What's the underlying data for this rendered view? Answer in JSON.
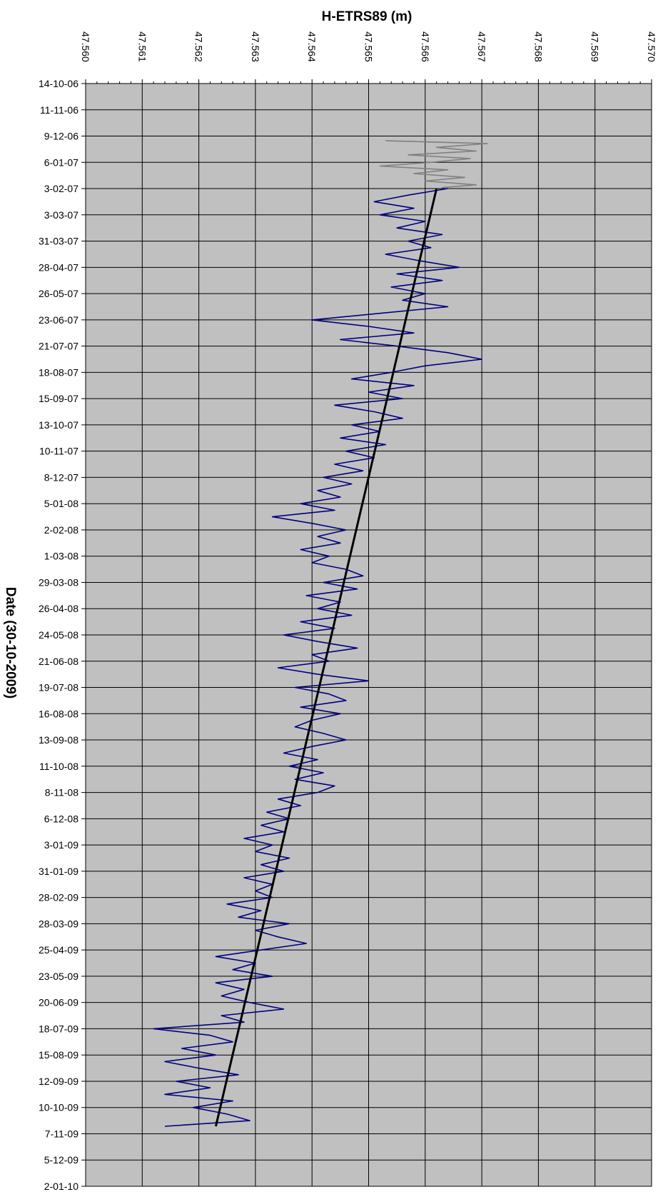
{
  "chart_data": {
    "type": "line",
    "title": "",
    "xlabel": "H-ETRS89 (m)",
    "ylabel": "Date (30-10-2009)",
    "x_axis_position": "top",
    "xlim": [
      47.56,
      47.57
    ],
    "x_ticks": [
      "47.560",
      "47.561",
      "47.562",
      "47.563",
      "47.564",
      "47.565",
      "47.566",
      "47.567",
      "47.568",
      "47.569",
      "47.570"
    ],
    "ylim": [
      "2006-10-14",
      "2010-01-02"
    ],
    "y_ticks": [
      "14-10-06",
      "11-11-06",
      "9-12-06",
      "6-01-07",
      "3-02-07",
      "3-03-07",
      "31-03-07",
      "28-04-07",
      "26-05-07",
      "23-06-07",
      "21-07-07",
      "18-08-07",
      "15-09-07",
      "13-10-07",
      "10-11-07",
      "8-12-07",
      "5-01-08",
      "2-02-08",
      "1-03-08",
      "29-03-08",
      "26-04-08",
      "24-05-08",
      "21-06-08",
      "19-07-08",
      "16-08-08",
      "13-09-08",
      "11-10-08",
      "8-11-08",
      "6-12-08",
      "3-01-09",
      "31-01-09",
      "28-02-09",
      "28-03-09",
      "25-04-09",
      "23-05-09",
      "20-06-09",
      "18-07-09",
      "15-08-09",
      "12-09-09",
      "10-10-09",
      "7-11-09",
      "5-12-09",
      "2-01-10"
    ],
    "grid": true,
    "background": "#c0c0c0",
    "series": [
      {
        "color": "#808080",
        "points": [
          [
            "2006-12-14",
            47.5653
          ],
          [
            "2006-12-17",
            47.5671
          ],
          [
            "2006-12-21",
            47.5662
          ],
          [
            "2006-12-25",
            47.5669
          ],
          [
            "2006-12-29",
            47.5657
          ],
          [
            "2007-01-02",
            47.5668
          ],
          [
            "2007-01-06",
            47.5661
          ],
          [
            "2007-01-10",
            47.5652
          ],
          [
            "2007-01-14",
            47.5664
          ],
          [
            "2007-01-18",
            47.5658
          ],
          [
            "2007-01-22",
            47.5667
          ],
          [
            "2007-01-26",
            47.566
          ],
          [
            "2007-01-30",
            47.5669
          ],
          [
            "2007-02-02",
            47.5663
          ]
        ]
      },
      {
        "color": "#000080",
        "points": [
          [
            "2007-02-03",
            47.5664
          ],
          [
            "2007-02-10",
            47.5657
          ],
          [
            "2007-02-17",
            47.5651
          ],
          [
            "2007-02-24",
            47.5658
          ],
          [
            "2007-03-03",
            47.5652
          ],
          [
            "2007-03-10",
            47.566
          ],
          [
            "2007-03-17",
            47.5655
          ],
          [
            "2007-03-24",
            47.5663
          ],
          [
            "2007-03-31",
            47.5657
          ],
          [
            "2007-04-07",
            47.5661
          ],
          [
            "2007-04-14",
            47.5653
          ],
          [
            "2007-04-21",
            47.5659
          ],
          [
            "2007-04-28",
            47.5666
          ],
          [
            "2007-05-05",
            47.5655
          ],
          [
            "2007-05-12",
            47.5663
          ],
          [
            "2007-05-19",
            47.5654
          ],
          [
            "2007-05-26",
            47.566
          ],
          [
            "2007-06-02",
            47.5656
          ],
          [
            "2007-06-09",
            47.5664
          ],
          [
            "2007-06-16",
            47.5652
          ],
          [
            "2007-06-23",
            47.564
          ],
          [
            "2007-06-30",
            47.565
          ],
          [
            "2007-07-07",
            47.5658
          ],
          [
            "2007-07-14",
            47.5645
          ],
          [
            "2007-07-21",
            47.5655
          ],
          [
            "2007-07-28",
            47.5664
          ],
          [
            "2007-08-04",
            47.567
          ],
          [
            "2007-08-11",
            47.566
          ],
          [
            "2007-08-18",
            47.5654
          ],
          [
            "2007-08-25",
            47.5647
          ],
          [
            "2007-09-01",
            47.5658
          ],
          [
            "2007-09-08",
            47.565
          ],
          [
            "2007-09-15",
            47.5656
          ],
          [
            "2007-09-22",
            47.5644
          ],
          [
            "2007-09-29",
            47.5651
          ],
          [
            "2007-10-06",
            47.5656
          ],
          [
            "2007-10-13",
            47.5647
          ],
          [
            "2007-10-20",
            47.5652
          ],
          [
            "2007-10-27",
            47.5645
          ],
          [
            "2007-11-03",
            47.5653
          ],
          [
            "2007-11-10",
            47.5646
          ],
          [
            "2007-11-17",
            47.5651
          ],
          [
            "2007-11-24",
            47.5644
          ],
          [
            "2007-12-01",
            47.5649
          ],
          [
            "2007-12-08",
            47.5642
          ],
          [
            "2007-12-15",
            47.5647
          ],
          [
            "2007-12-22",
            47.5641
          ],
          [
            "2007-12-29",
            47.5645
          ],
          [
            "2008-01-05",
            47.5638
          ],
          [
            "2008-01-12",
            47.5644
          ],
          [
            "2008-01-19",
            47.5633
          ],
          [
            "2008-01-26",
            47.564
          ],
          [
            "2008-02-02",
            47.5646
          ],
          [
            "2008-02-09",
            47.5641
          ],
          [
            "2008-02-16",
            47.5645
          ],
          [
            "2008-02-23",
            47.5638
          ],
          [
            "2008-03-01",
            47.5643
          ],
          [
            "2008-03-08",
            47.564
          ],
          [
            "2008-03-15",
            47.5646
          ],
          [
            "2008-03-22",
            47.5649
          ],
          [
            "2008-03-29",
            47.5642
          ],
          [
            "2008-04-05",
            47.5648
          ],
          [
            "2008-04-12",
            47.5639
          ],
          [
            "2008-04-19",
            47.5645
          ],
          [
            "2008-04-26",
            47.5641
          ],
          [
            "2008-05-03",
            47.5647
          ],
          [
            "2008-05-10",
            47.5638
          ],
          [
            "2008-05-17",
            47.5644
          ],
          [
            "2008-05-24",
            47.5635
          ],
          [
            "2008-05-31",
            47.5641
          ],
          [
            "2008-06-07",
            47.5648
          ],
          [
            "2008-06-14",
            47.564
          ],
          [
            "2008-06-21",
            47.5643
          ],
          [
            "2008-06-28",
            47.5634
          ],
          [
            "2008-07-05",
            47.5641
          ],
          [
            "2008-07-12",
            47.565
          ],
          [
            "2008-07-19",
            47.5637
          ],
          [
            "2008-07-26",
            47.5643
          ],
          [
            "2008-08-02",
            47.5646
          ],
          [
            "2008-08-09",
            47.5638
          ],
          [
            "2008-08-16",
            47.5645
          ],
          [
            "2008-08-23",
            47.564
          ],
          [
            "2008-08-30",
            47.5637
          ],
          [
            "2008-09-06",
            47.5642
          ],
          [
            "2008-09-13",
            47.5646
          ],
          [
            "2008-09-20",
            47.564
          ],
          [
            "2008-09-27",
            47.5635
          ],
          [
            "2008-10-04",
            47.5641
          ],
          [
            "2008-10-11",
            47.5636
          ],
          [
            "2008-10-18",
            47.5642
          ],
          [
            "2008-10-25",
            47.5637
          ],
          [
            "2008-11-01",
            47.5644
          ],
          [
            "2008-11-08",
            47.5641
          ],
          [
            "2008-11-15",
            47.5634
          ],
          [
            "2008-11-22",
            47.5638
          ],
          [
            "2008-11-29",
            47.5632
          ],
          [
            "2008-12-06",
            47.5636
          ],
          [
            "2008-12-13",
            47.5631
          ],
          [
            "2008-12-20",
            47.5635
          ],
          [
            "2008-12-27",
            47.5628
          ],
          [
            "2009-01-03",
            47.5633
          ],
          [
            "2009-01-10",
            47.563
          ],
          [
            "2009-01-17",
            47.5636
          ],
          [
            "2009-01-24",
            47.5631
          ],
          [
            "2009-01-31",
            47.5635
          ],
          [
            "2009-02-07",
            47.5628
          ],
          [
            "2009-02-14",
            47.5633
          ],
          [
            "2009-02-21",
            47.563
          ],
          [
            "2009-02-28",
            47.5633
          ],
          [
            "2009-03-07",
            47.5625
          ],
          [
            "2009-03-14",
            47.5631
          ],
          [
            "2009-03-21",
            47.5627
          ],
          [
            "2009-03-28",
            47.5636
          ],
          [
            "2009-04-04",
            47.563
          ],
          [
            "2009-04-11",
            47.5634
          ],
          [
            "2009-04-18",
            47.5639
          ],
          [
            "2009-04-25",
            47.5631
          ],
          [
            "2009-05-02",
            47.5623
          ],
          [
            "2009-05-09",
            47.563
          ],
          [
            "2009-05-16",
            47.5626
          ],
          [
            "2009-05-23",
            47.5633
          ],
          [
            "2009-05-30",
            47.5623
          ],
          [
            "2009-06-06",
            47.5628
          ],
          [
            "2009-06-13",
            47.5624
          ],
          [
            "2009-06-20",
            47.5629
          ],
          [
            "2009-06-27",
            47.5635
          ],
          [
            "2009-07-04",
            47.5624
          ],
          [
            "2009-07-11",
            47.5628
          ],
          [
            "2009-07-18",
            47.5612
          ],
          [
            "2009-07-25",
            47.5622
          ],
          [
            "2009-08-01",
            47.5626
          ],
          [
            "2009-08-08",
            47.5617
          ],
          [
            "2009-08-15",
            47.5623
          ],
          [
            "2009-08-22",
            47.5614
          ],
          [
            "2009-08-29",
            47.562
          ],
          [
            "2009-09-05",
            47.5627
          ],
          [
            "2009-09-12",
            47.5616
          ],
          [
            "2009-09-19",
            47.5622
          ],
          [
            "2009-09-26",
            47.5614
          ],
          [
            "2009-10-03",
            47.5626
          ],
          [
            "2009-10-10",
            47.5619
          ],
          [
            "2009-10-17",
            47.5625
          ],
          [
            "2009-10-24",
            47.5629
          ],
          [
            "2009-10-30",
            47.5614
          ]
        ]
      },
      {
        "color": "#000000",
        "type": "linear-trend",
        "points": [
          [
            "2007-02-03",
            47.5662
          ],
          [
            "2009-10-30",
            47.5623
          ]
        ]
      }
    ]
  }
}
